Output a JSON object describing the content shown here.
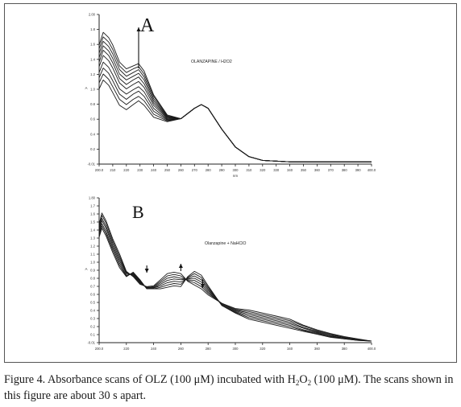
{
  "figure": {
    "caption": {
      "prefix": "Figure 4. Absorbance scans of OLZ (100 μM) incubated with H",
      "sub1": "2",
      "mid": "O",
      "sub2": "2",
      "suffix": " (100 μM). The scans shown in this figure are about 30 s apart."
    }
  },
  "chart_data": [
    {
      "type": "line",
      "panel_label": "A",
      "annotation": "OLANZAPINE / H2O2",
      "xlabel": "nm",
      "ylabel": "A",
      "xlim": [
        200,
        400
      ],
      "ylim": [
        -0.01,
        2.0
      ],
      "x_ticks": [
        "200.0",
        "210",
        "220",
        "230",
        "240",
        "250",
        "260",
        "270",
        "280",
        "290",
        "300",
        "310",
        "320",
        "330",
        "340",
        "350",
        "360",
        "370",
        "380",
        "390",
        "400.0"
      ],
      "y_ticks": [
        "-0.01",
        "0.2",
        "0.4",
        "0.6",
        "0.8",
        "1.0",
        "1.2",
        "1.4",
        "1.6",
        "1.8",
        "2.00"
      ],
      "arrows": [
        {
          "x": 229,
          "direction": "up"
        }
      ],
      "scan_interval": "about 30 s",
      "x": [
        200,
        203,
        207,
        210,
        215,
        220,
        225,
        229,
        233,
        240,
        250,
        260,
        270,
        275,
        280,
        290,
        300,
        310,
        320,
        340,
        360,
        380,
        400
      ],
      "series": [
        {
          "values": [
            1.0,
            1.12,
            1.05,
            0.95,
            0.78,
            0.72,
            0.79,
            0.84,
            0.78,
            0.62,
            0.56,
            0.6,
            0.74,
            0.79,
            0.74,
            0.46,
            0.22,
            0.09,
            0.04,
            0.02,
            0.02,
            0.02,
            0.02
          ]
        },
        {
          "values": [
            1.08,
            1.2,
            1.13,
            1.03,
            0.86,
            0.79,
            0.86,
            0.9,
            0.84,
            0.66,
            0.57,
            0.6,
            0.74,
            0.79,
            0.74,
            0.46,
            0.22,
            0.09,
            0.04,
            0.02,
            0.02,
            0.02,
            0.02
          ]
        },
        {
          "values": [
            1.15,
            1.28,
            1.21,
            1.11,
            0.93,
            0.86,
            0.93,
            0.97,
            0.9,
            0.7,
            0.58,
            0.6,
            0.74,
            0.79,
            0.74,
            0.46,
            0.22,
            0.09,
            0.04,
            0.02,
            0.02,
            0.02,
            0.02
          ]
        },
        {
          "values": [
            1.22,
            1.36,
            1.29,
            1.19,
            1.0,
            0.93,
            0.99,
            1.03,
            0.96,
            0.74,
            0.59,
            0.6,
            0.74,
            0.79,
            0.74,
            0.46,
            0.22,
            0.09,
            0.04,
            0.02,
            0.02,
            0.02,
            0.02
          ]
        },
        {
          "values": [
            1.3,
            1.45,
            1.38,
            1.28,
            1.08,
            1.0,
            1.06,
            1.1,
            1.02,
            0.78,
            0.6,
            0.6,
            0.74,
            0.79,
            0.74,
            0.46,
            0.22,
            0.09,
            0.04,
            0.02,
            0.02,
            0.02,
            0.02
          ]
        },
        {
          "values": [
            1.36,
            1.52,
            1.45,
            1.35,
            1.14,
            1.06,
            1.12,
            1.16,
            1.07,
            0.81,
            0.61,
            0.6,
            0.74,
            0.79,
            0.74,
            0.46,
            0.22,
            0.09,
            0.04,
            0.02,
            0.02,
            0.02,
            0.02
          ]
        },
        {
          "values": [
            1.42,
            1.58,
            1.51,
            1.41,
            1.2,
            1.12,
            1.17,
            1.21,
            1.12,
            0.84,
            0.62,
            0.6,
            0.74,
            0.79,
            0.74,
            0.46,
            0.22,
            0.09,
            0.04,
            0.02,
            0.02,
            0.02,
            0.02
          ]
        },
        {
          "values": [
            1.48,
            1.64,
            1.57,
            1.47,
            1.26,
            1.17,
            1.22,
            1.26,
            1.16,
            0.87,
            0.63,
            0.6,
            0.74,
            0.79,
            0.74,
            0.46,
            0.22,
            0.09,
            0.04,
            0.02,
            0.02,
            0.02,
            0.02
          ]
        },
        {
          "values": [
            1.54,
            1.7,
            1.63,
            1.53,
            1.31,
            1.22,
            1.27,
            1.3,
            1.2,
            0.9,
            0.64,
            0.6,
            0.74,
            0.79,
            0.74,
            0.46,
            0.22,
            0.09,
            0.04,
            0.02,
            0.02,
            0.02,
            0.02
          ]
        },
        {
          "values": [
            1.59,
            1.76,
            1.69,
            1.59,
            1.36,
            1.27,
            1.31,
            1.34,
            1.24,
            0.92,
            0.65,
            0.6,
            0.74,
            0.79,
            0.74,
            0.46,
            0.22,
            0.09,
            0.04,
            0.02,
            0.02,
            0.02,
            0.02
          ]
        }
      ]
    },
    {
      "type": "line",
      "panel_label": "B",
      "annotation": "Olanzapine + NaHClO",
      "xlabel": "",
      "ylabel": "A",
      "xlim": [
        200,
        400
      ],
      "ylim": [
        -0.01,
        1.9
      ],
      "x_ticks": [
        "200.0",
        "220",
        "240",
        "260",
        "280",
        "300",
        "320",
        "340",
        "360",
        "380",
        "400.0"
      ],
      "y_ticks": [
        "-0.01",
        "0.1",
        "0.2",
        "0.3",
        "0.4",
        "0.5",
        "0.6",
        "0.7",
        "0.8",
        "0.9",
        "1.0",
        "1.1",
        "1.2",
        "1.3",
        "1.4",
        "1.5",
        "1.6",
        "1.7",
        "1.80"
      ],
      "arrows": [
        {
          "x": 235,
          "direction": "down"
        },
        {
          "x": 260,
          "direction": "up"
        },
        {
          "x": 276,
          "direction": "down"
        }
      ],
      "scan_interval": "about 30 s",
      "x": [
        200,
        202,
        205,
        210,
        215,
        220,
        225,
        230,
        235,
        240,
        245,
        250,
        255,
        260,
        265,
        270,
        275,
        280,
        290,
        300,
        310,
        320,
        330,
        340,
        350,
        360,
        370,
        380,
        390,
        400
      ],
      "series": [
        {
          "values": [
            1.38,
            1.5,
            1.4,
            1.18,
            0.98,
            0.86,
            0.92,
            0.82,
            0.7,
            0.7,
            0.7,
            0.72,
            0.74,
            0.73,
            0.86,
            0.93,
            0.88,
            0.74,
            0.48,
            0.38,
            0.3,
            0.26,
            0.22,
            0.18,
            0.14,
            0.1,
            0.06,
            0.04,
            0.02,
            0.01
          ]
        },
        {
          "values": [
            1.4,
            1.53,
            1.43,
            1.21,
            1.01,
            0.87,
            0.91,
            0.81,
            0.7,
            0.7,
            0.72,
            0.75,
            0.77,
            0.76,
            0.85,
            0.9,
            0.85,
            0.72,
            0.49,
            0.39,
            0.32,
            0.28,
            0.24,
            0.2,
            0.15,
            0.11,
            0.07,
            0.04,
            0.02,
            0.01
          ]
        },
        {
          "values": [
            1.43,
            1.56,
            1.46,
            1.24,
            1.04,
            0.88,
            0.9,
            0.8,
            0.71,
            0.71,
            0.74,
            0.78,
            0.8,
            0.79,
            0.84,
            0.87,
            0.82,
            0.7,
            0.49,
            0.4,
            0.34,
            0.3,
            0.26,
            0.22,
            0.16,
            0.12,
            0.07,
            0.05,
            0.03,
            0.01
          ]
        },
        {
          "values": [
            1.46,
            1.6,
            1.5,
            1.27,
            1.07,
            0.9,
            0.89,
            0.79,
            0.71,
            0.71,
            0.76,
            0.81,
            0.83,
            0.82,
            0.83,
            0.84,
            0.79,
            0.68,
            0.5,
            0.41,
            0.36,
            0.32,
            0.28,
            0.24,
            0.18,
            0.13,
            0.08,
            0.05,
            0.03,
            0.01
          ]
        },
        {
          "values": [
            1.49,
            1.63,
            1.53,
            1.3,
            1.1,
            0.91,
            0.88,
            0.78,
            0.72,
            0.72,
            0.78,
            0.84,
            0.86,
            0.84,
            0.82,
            0.81,
            0.76,
            0.66,
            0.5,
            0.42,
            0.38,
            0.34,
            0.3,
            0.26,
            0.19,
            0.14,
            0.09,
            0.06,
            0.03,
            0.01
          ]
        },
        {
          "values": [
            1.52,
            1.67,
            1.57,
            1.33,
            1.13,
            0.92,
            0.87,
            0.77,
            0.72,
            0.73,
            0.8,
            0.87,
            0.89,
            0.87,
            0.81,
            0.78,
            0.73,
            0.64,
            0.51,
            0.43,
            0.4,
            0.36,
            0.32,
            0.28,
            0.21,
            0.15,
            0.1,
            0.06,
            0.03,
            0.01
          ]
        },
        {
          "values": [
            1.55,
            1.7,
            1.6,
            1.36,
            1.16,
            0.93,
            0.86,
            0.76,
            0.73,
            0.74,
            0.82,
            0.9,
            0.92,
            0.9,
            0.8,
            0.75,
            0.7,
            0.62,
            0.51,
            0.44,
            0.42,
            0.38,
            0.34,
            0.3,
            0.22,
            0.16,
            0.11,
            0.07,
            0.04,
            0.01
          ]
        }
      ]
    }
  ]
}
